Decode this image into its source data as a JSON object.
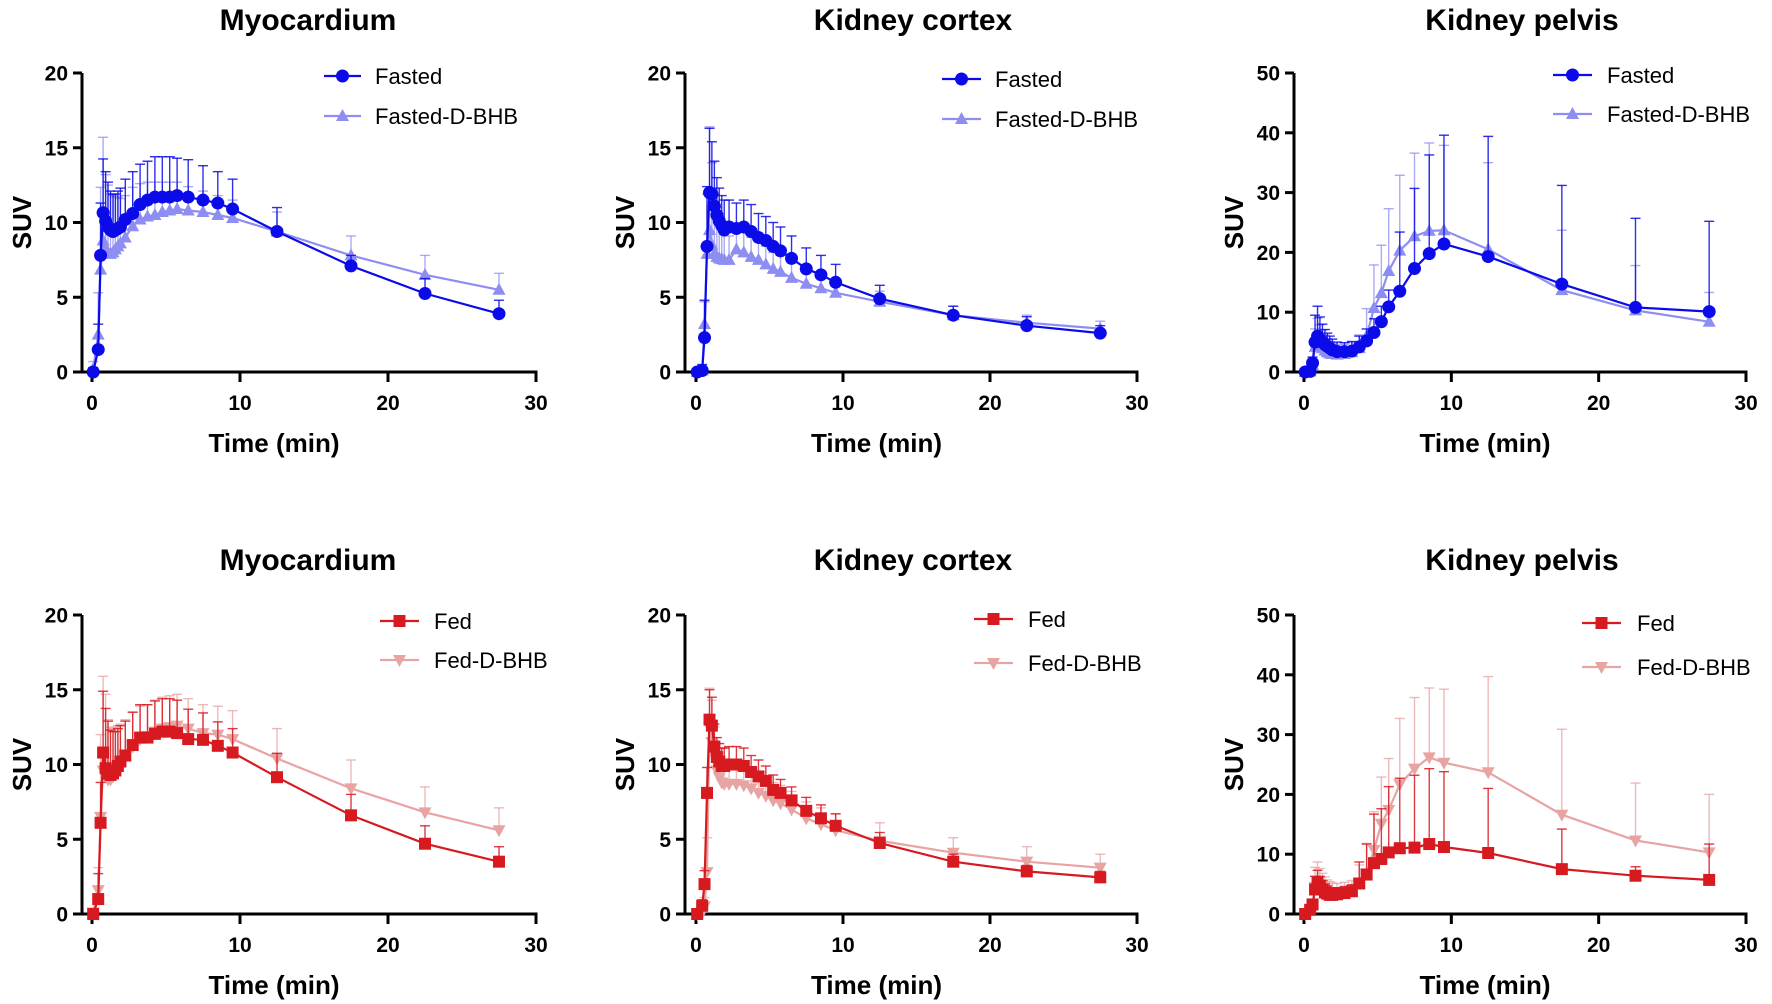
{
  "figure": {
    "colors": {
      "Fasted": "#0b0bea",
      "Fasted-D-BHB": "#8e8ef2",
      "Fed": "#d71920",
      "Fed-D-BHB": "#e8a3a3"
    }
  },
  "chart_data": [
    {
      "type": "line",
      "title": "Myocardium",
      "xlabel": "Time (min)",
      "ylabel": "SUV",
      "xlim": [
        0,
        30
      ],
      "ylim": [
        0,
        20
      ],
      "xticks": [
        "0",
        "10",
        "20",
        "30"
      ],
      "yticks": [
        "0",
        "5",
        "10",
        "15",
        "20"
      ],
      "grid": false,
      "legend": "top-right",
      "error_bars": "upper SD",
      "x": [
        0.08,
        0.42,
        0.58,
        0.75,
        0.92,
        1.08,
        1.25,
        1.42,
        1.58,
        1.75,
        1.92,
        2.25,
        2.75,
        3.25,
        3.75,
        4.25,
        4.75,
        5.25,
        5.75,
        6.5,
        7.5,
        8.5,
        9.5,
        12.5,
        17.5,
        22.5,
        27.5
      ],
      "series": [
        {
          "name": "Fasted",
          "marker": "circle",
          "color": "#0b0bea",
          "values": [
            0,
            1.5,
            7.8,
            10.65,
            10.1,
            9.7,
            9.5,
            9.4,
            9.5,
            9.6,
            9.7,
            10.2,
            10.6,
            11.2,
            11.5,
            11.7,
            11.7,
            11.7,
            11.8,
            11.7,
            11.5,
            11.3,
            10.9,
            9.4,
            7.1,
            5.25,
            3.9
          ],
          "err": [
            0.3,
            1.7,
            3.5,
            3.6,
            3.3,
            3.0,
            2.6,
            2.5,
            2.4,
            2.5,
            2.6,
            2.7,
            2.8,
            2.7,
            2.6,
            2.7,
            2.7,
            2.7,
            2.5,
            2.5,
            2.3,
            2.1,
            2.0,
            1.6,
            0.7,
            1.0,
            0.9
          ]
        },
        {
          "name": "Fasted-D-BHB",
          "marker": "triangle-up",
          "color": "#8e8ef2",
          "values": [
            0.2,
            2.5,
            6.85,
            8.8,
            8.2,
            8.0,
            7.9,
            8.0,
            8.2,
            8.4,
            8.6,
            9.0,
            9.75,
            10.2,
            10.4,
            10.5,
            10.7,
            10.8,
            10.9,
            10.8,
            10.7,
            10.5,
            10.3,
            9.4,
            7.8,
            6.5,
            5.5
          ],
          "err": [
            0.5,
            2.8,
            5.5,
            6.9,
            5.0,
            4.5,
            4.0,
            3.8,
            3.5,
            3.3,
            3.0,
            2.8,
            2.6,
            2.4,
            2.3,
            2.2,
            2.0,
            1.9,
            1.8,
            1.6,
            1.4,
            1.3,
            1.2,
            1.3,
            1.3,
            1.3,
            1.1
          ]
        }
      ]
    },
    {
      "type": "line",
      "title": "Kidney cortex",
      "xlabel": "Time (min)",
      "ylabel": "SUV",
      "xlim": [
        0,
        30
      ],
      "ylim": [
        0,
        20
      ],
      "xticks": [
        "0",
        "10",
        "20",
        "30"
      ],
      "yticks": [
        "0",
        "5",
        "10",
        "15",
        "20"
      ],
      "grid": false,
      "legend": "top-right",
      "error_bars": "upper SD",
      "x": [
        0.08,
        0.42,
        0.58,
        0.75,
        0.92,
        1.08,
        1.25,
        1.42,
        1.58,
        1.75,
        1.92,
        2.25,
        2.75,
        3.25,
        3.75,
        4.25,
        4.75,
        5.25,
        5.75,
        6.5,
        7.5,
        8.5,
        9.5,
        12.5,
        17.5,
        22.5,
        27.5
      ],
      "series": [
        {
          "name": "Fasted",
          "marker": "circle",
          "color": "#0b0bea",
          "values": [
            0,
            0.1,
            2.3,
            8.4,
            12.0,
            11.9,
            11.1,
            10.5,
            10.1,
            9.8,
            9.5,
            9.7,
            9.6,
            9.7,
            9.4,
            9.0,
            8.8,
            8.4,
            8.1,
            7.6,
            6.9,
            6.5,
            6.0,
            4.9,
            3.8,
            3.1,
            2.6
          ],
          "err": [
            0.1,
            0.4,
            2.5,
            4.0,
            4.3,
            3.5,
            3.0,
            2.5,
            2.2,
            2.0,
            2.0,
            1.8,
            1.7,
            1.8,
            1.8,
            1.6,
            1.6,
            1.6,
            1.6,
            1.5,
            1.4,
            1.3,
            1.2,
            0.9,
            0.6,
            0.6,
            0.5
          ]
        },
        {
          "name": "Fasted-D-BHB",
          "marker": "triangle-up",
          "color": "#8e8ef2",
          "values": [
            0,
            0.1,
            3.2,
            7.9,
            9.5,
            8.5,
            7.9,
            7.7,
            7.6,
            7.55,
            7.5,
            7.5,
            8.2,
            8.0,
            7.7,
            7.5,
            7.2,
            6.9,
            6.7,
            6.3,
            5.9,
            5.6,
            5.3,
            4.7,
            3.8,
            3.3,
            2.9
          ],
          "err": [
            0.1,
            0.3,
            1.5,
            4.0,
            6.9,
            5.5,
            4.0,
            3.3,
            3.0,
            2.5,
            2.2,
            1.6,
            1.5,
            1.4,
            1.3,
            1.3,
            1.2,
            1.1,
            1.1,
            1.0,
            0.9,
            0.9,
            0.8,
            0.7,
            0.6,
            0.5,
            0.5
          ]
        }
      ]
    },
    {
      "type": "line",
      "title": "Kidney pelvis",
      "xlabel": "Time (min)",
      "ylabel": "SUV",
      "xlim": [
        0,
        30
      ],
      "ylim": [
        0,
        50
      ],
      "xticks": [
        "0",
        "10",
        "20",
        "30"
      ],
      "yticks": [
        "0",
        "10",
        "20",
        "30",
        "40",
        "50"
      ],
      "grid": false,
      "legend": "top-right",
      "error_bars": "upper SD",
      "x": [
        0.08,
        0.42,
        0.58,
        0.75,
        0.92,
        1.08,
        1.25,
        1.42,
        1.58,
        1.75,
        1.92,
        2.25,
        2.75,
        3.25,
        3.75,
        4.25,
        4.75,
        5.25,
        5.75,
        6.5,
        7.5,
        8.5,
        9.5,
        12.5,
        17.5,
        22.5,
        27.5
      ],
      "series": [
        {
          "name": "Fasted",
          "marker": "circle",
          "color": "#0b0bea",
          "values": [
            0,
            0.1,
            1.5,
            5.0,
            6.0,
            5.4,
            5.0,
            4.6,
            4.3,
            4.0,
            3.7,
            3.4,
            3.4,
            3.5,
            4.2,
            5.2,
            6.6,
            8.4,
            10.9,
            13.5,
            17.3,
            19.8,
            21.4,
            19.3,
            14.7,
            10.8,
            10.1
          ],
          "err": [
            0.1,
            0.3,
            1.0,
            4.5,
            5.0,
            3.8,
            3.0,
            2.5,
            2.2,
            2.0,
            1.8,
            1.6,
            1.5,
            1.6,
            1.8,
            2.0,
            2.3,
            2.6,
            2.8,
            9.9,
            13.4,
            16.5,
            18.2,
            20.1,
            16.5,
            14.9,
            15.1
          ]
        },
        {
          "name": "Fasted-D-BHB",
          "marker": "triangle-up",
          "color": "#8e8ef2",
          "values": [
            0,
            0.1,
            1.2,
            4.2,
            5.0,
            4.4,
            4.0,
            3.6,
            3.3,
            3.1,
            3.0,
            2.9,
            3.0,
            3.3,
            4.0,
            6.0,
            10.7,
            13.2,
            16.9,
            20.3,
            22.7,
            23.6,
            23.7,
            20.5,
            13.7,
            10.3,
            8.4
          ],
          "err": [
            0.1,
            0.3,
            1.0,
            3.0,
            4.0,
            3.5,
            3.0,
            2.6,
            2.3,
            2.0,
            1.8,
            1.6,
            1.6,
            1.7,
            2.2,
            4.6,
            7.2,
            8.0,
            10.4,
            12.6,
            13.9,
            14.7,
            14.2,
            14.5,
            10.0,
            7.5,
            4.9
          ]
        }
      ]
    },
    {
      "type": "line",
      "title": "Myocardium",
      "xlabel": "Time (min)",
      "ylabel": "SUV",
      "xlim": [
        0,
        30
      ],
      "ylim": [
        0,
        20
      ],
      "xticks": [
        "0",
        "10",
        "20",
        "30"
      ],
      "yticks": [
        "0",
        "5",
        "10",
        "15",
        "20"
      ],
      "grid": false,
      "legend": "top-right",
      "error_bars": "upper SD",
      "x": [
        0.08,
        0.42,
        0.58,
        0.75,
        0.92,
        1.08,
        1.25,
        1.42,
        1.58,
        1.75,
        1.92,
        2.25,
        2.75,
        3.25,
        3.75,
        4.25,
        4.75,
        5.25,
        5.75,
        6.5,
        7.5,
        8.5,
        9.5,
        12.5,
        17.5,
        22.5,
        27.5
      ],
      "series": [
        {
          "name": "Fed",
          "marker": "square",
          "color": "#d71920",
          "values": [
            0,
            1.0,
            6.1,
            10.8,
            9.75,
            9.4,
            9.3,
            9.4,
            9.6,
            9.9,
            10.2,
            10.6,
            11.3,
            11.8,
            11.8,
            12.05,
            12.2,
            12.2,
            12.1,
            11.7,
            11.65,
            11.25,
            10.8,
            9.15,
            6.6,
            4.7,
            3.5
          ],
          "err": [
            0.1,
            1.7,
            2.7,
            4.1,
            4.0,
            3.5,
            3.0,
            2.8,
            2.6,
            2.5,
            2.4,
            2.3,
            2.2,
            2.2,
            2.2,
            2.2,
            2.2,
            2.2,
            2.2,
            2.0,
            1.8,
            1.6,
            1.6,
            1.6,
            1.4,
            1.2,
            1.0
          ]
        },
        {
          "name": "Fed-D-BHB",
          "marker": "triangle-down",
          "color": "#e8a3a3",
          "values": [
            0.1,
            1.6,
            6.5,
            9.6,
            9.2,
            9.0,
            9.0,
            9.2,
            9.5,
            9.8,
            10.1,
            10.6,
            11.2,
            11.7,
            11.9,
            12.2,
            12.4,
            12.5,
            12.6,
            12.4,
            12.1,
            12.0,
            11.7,
            10.4,
            8.4,
            6.8,
            5.6
          ],
          "err": [
            0.2,
            1.5,
            5.5,
            6.3,
            5.5,
            4.0,
            3.5,
            3.2,
            3.0,
            2.8,
            2.6,
            2.4,
            2.3,
            2.2,
            2.1,
            2.1,
            2.1,
            2.1,
            2.1,
            2.0,
            1.9,
            1.9,
            1.9,
            2.0,
            1.9,
            1.7,
            1.5
          ]
        }
      ]
    },
    {
      "type": "line",
      "title": "Kidney cortex",
      "xlabel": "Time (min)",
      "ylabel": "SUV",
      "xlim": [
        0,
        30
      ],
      "ylim": [
        0,
        20
      ],
      "xticks": [
        "0",
        "10",
        "20",
        "30"
      ],
      "yticks": [
        "0",
        "5",
        "10",
        "15",
        "20"
      ],
      "grid": false,
      "legend": "top-right",
      "error_bars": "upper SD",
      "x": [
        0.08,
        0.42,
        0.58,
        0.75,
        0.92,
        1.08,
        1.25,
        1.42,
        1.58,
        1.75,
        1.92,
        2.25,
        2.75,
        3.25,
        3.75,
        4.25,
        4.75,
        5.25,
        5.75,
        6.5,
        7.5,
        8.5,
        9.5,
        12.5,
        17.5,
        22.5,
        27.5
      ],
      "series": [
        {
          "name": "Fed",
          "marker": "square",
          "color": "#d71920",
          "values": [
            0,
            0.55,
            2.0,
            8.1,
            13.0,
            12.6,
            11.2,
            10.5,
            10.2,
            9.9,
            9.9,
            10.0,
            10.0,
            9.9,
            9.5,
            9.2,
            8.9,
            8.3,
            8.1,
            7.6,
            6.9,
            6.4,
            5.9,
            4.75,
            3.5,
            2.85,
            2.45
          ],
          "err": [
            0.1,
            0.4,
            0.9,
            1.7,
            2.0,
            1.9,
            1.5,
            1.3,
            1.2,
            1.2,
            1.2,
            1.2,
            1.2,
            1.2,
            1.1,
            1.1,
            1.0,
            1.0,
            0.9,
            0.9,
            0.9,
            0.9,
            0.8,
            0.7,
            0.5,
            0.4,
            0.4
          ]
        },
        {
          "name": "Fed-D-BHB",
          "marker": "triangle-down",
          "color": "#e8a3a3",
          "values": [
            0,
            0.1,
            0.5,
            2.8,
            12.5,
            11.5,
            10.5,
            9.6,
            9.15,
            8.8,
            8.7,
            8.7,
            8.7,
            8.6,
            8.4,
            8.1,
            7.9,
            7.6,
            7.4,
            7.0,
            6.4,
            6.0,
            5.6,
            4.9,
            4.1,
            3.5,
            3.1
          ],
          "err": [
            0.1,
            0.3,
            0.6,
            2.3,
            2.6,
            2.8,
            2.0,
            1.8,
            1.6,
            1.5,
            1.5,
            1.4,
            1.4,
            1.4,
            1.3,
            1.2,
            1.2,
            1.2,
            1.2,
            1.2,
            1.1,
            1.1,
            1.1,
            1.2,
            1.0,
            1.0,
            0.9
          ]
        }
      ]
    },
    {
      "type": "line",
      "title": "Kidney pelvis",
      "xlabel": "Time (min)",
      "ylabel": "SUV",
      "xlim": [
        0,
        30
      ],
      "ylim": [
        0,
        50
      ],
      "xticks": [
        "0",
        "10",
        "20",
        "30"
      ],
      "yticks": [
        "0",
        "10",
        "20",
        "30",
        "40",
        "50"
      ],
      "grid": false,
      "legend": "top-right",
      "error_bars": "upper SD",
      "x": [
        0.08,
        0.42,
        0.58,
        0.75,
        0.92,
        1.08,
        1.25,
        1.42,
        1.58,
        1.75,
        1.92,
        2.25,
        2.75,
        3.25,
        3.75,
        4.25,
        4.75,
        5.25,
        5.75,
        6.5,
        7.5,
        8.5,
        9.5,
        12.5,
        17.5,
        22.5,
        27.5
      ],
      "series": [
        {
          "name": "Fed",
          "marker": "square",
          "color": "#d71920",
          "values": [
            0,
            0.7,
            1.6,
            4.1,
            5.3,
            4.6,
            4.1,
            3.6,
            3.4,
            3.2,
            3.2,
            3.3,
            3.5,
            3.8,
            5.1,
            6.6,
            8.5,
            9.2,
            10.3,
            11.0,
            11.1,
            11.7,
            11.2,
            10.2,
            7.5,
            6.4,
            5.7
          ],
          "err": [
            0.1,
            0.3,
            0.8,
            2.2,
            2.0,
            1.7,
            1.5,
            1.4,
            1.3,
            1.2,
            1.2,
            1.1,
            1.1,
            1.1,
            3.6,
            5.1,
            8.2,
            8.4,
            11.0,
            11.7,
            12.1,
            12.6,
            12.6,
            10.8,
            6.7,
            1.5,
            6.0
          ]
        },
        {
          "name": "Fed-D-BHB",
          "marker": "triangle-down",
          "color": "#e8a3a3",
          "values": [
            0,
            0.5,
            1.2,
            4.5,
            5.5,
            4.9,
            4.4,
            4.0,
            3.7,
            3.5,
            3.4,
            3.4,
            3.6,
            3.9,
            5.2,
            6.8,
            10.7,
            15.1,
            17.4,
            21.7,
            24.3,
            26.2,
            25.3,
            23.7,
            16.6,
            12.3,
            10.3
          ],
          "err": [
            0.1,
            0.3,
            0.8,
            3.3,
            3.2,
            2.7,
            2.4,
            2.2,
            2.0,
            1.9,
            1.8,
            1.7,
            1.7,
            1.7,
            3.0,
            5.0,
            6.4,
            7.8,
            8.6,
            11.0,
            11.9,
            11.6,
            12.3,
            16.0,
            14.3,
            9.6,
            9.7
          ]
        }
      ]
    }
  ]
}
